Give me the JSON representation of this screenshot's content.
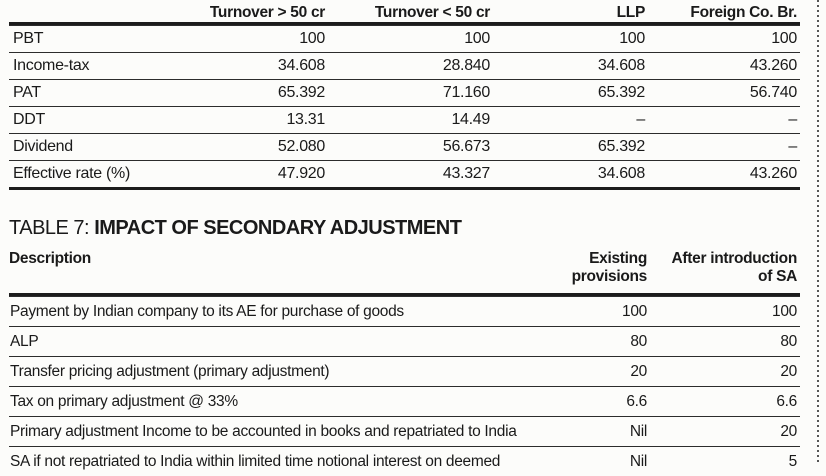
{
  "colors": {
    "ink": "#1a1a1a",
    "background": "#fcfcfa",
    "rule": "#1c1c1c",
    "dotted_divider": "#555555"
  },
  "tax_table": {
    "columns": [
      "Turnover > 50 cr",
      "Turnover < 50 cr",
      "LLP",
      "Foreign Co. Br."
    ],
    "rows": [
      {
        "label": "PBT",
        "values": [
          "100",
          "100",
          "100",
          "100"
        ]
      },
      {
        "label": "Income-tax",
        "values": [
          "34.608",
          "28.840",
          "34.608",
          "43.260"
        ]
      },
      {
        "label": "PAT",
        "values": [
          "65.392",
          "71.160",
          "65.392",
          "56.740"
        ]
      },
      {
        "label": "DDT",
        "values": [
          "13.31",
          "14.49",
          "–",
          "–"
        ]
      },
      {
        "label": "Dividend",
        "values": [
          "52.080",
          "56.673",
          "65.392",
          "–"
        ]
      },
      {
        "label": "Effective rate (%)",
        "values": [
          "47.920",
          "43.327",
          "34.608",
          "43.260"
        ]
      }
    ]
  },
  "secondary_adjustment_table": {
    "title_prefix": "TABLE 7:",
    "title_main": "IMPACT OF SECONDARY ADJUSTMENT",
    "col_description": "Description",
    "col_existing": "Existing\nprovisions",
    "col_after": "After introduction\nof SA",
    "rows": [
      {
        "label": "Payment by Indian company to its AE for purchase of goods",
        "existing": "100",
        "after": "100"
      },
      {
        "label": "ALP",
        "existing": "80",
        "after": "80"
      },
      {
        "label": "Transfer pricing adjustment (primary adjustment)",
        "existing": "20",
        "after": "20"
      },
      {
        "label": "Tax on primary adjustment @ 33%",
        "existing": "6.6",
        "after": "6.6"
      },
      {
        "label": "Primary adjustment Income to be accounted in books and repatriated to India",
        "existing": "Nil",
        "after": "20"
      },
      {
        "label": "SA if not repatriated to India within limited time notional interest on deemed",
        "existing": "Nil",
        "after": "5"
      }
    ]
  }
}
